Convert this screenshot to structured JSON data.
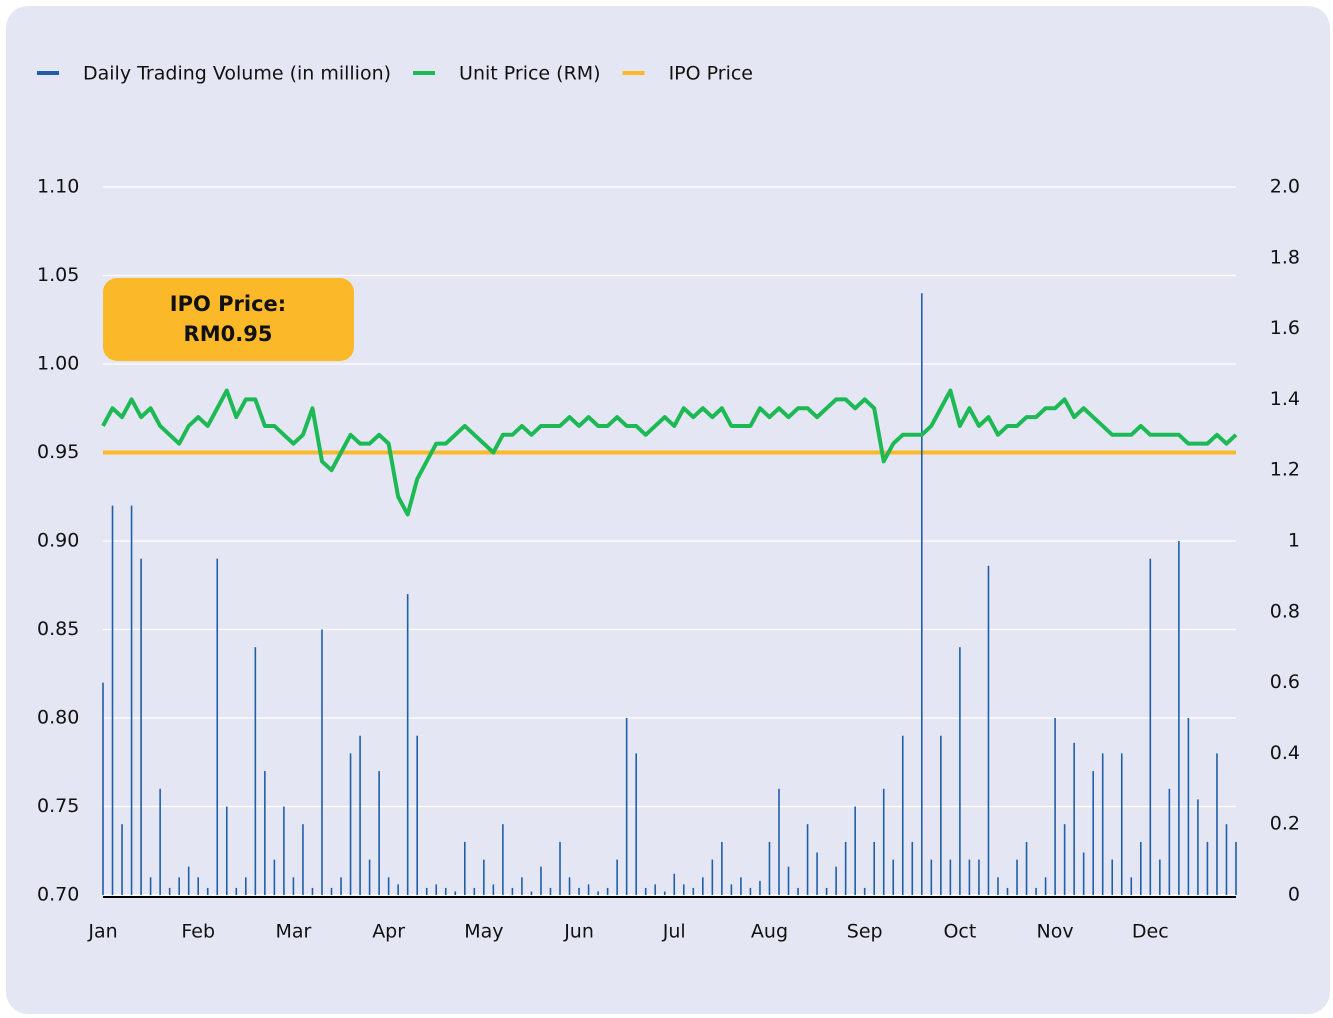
{
  "chart_data": {
    "type": "line",
    "categories": [
      "Jan",
      null,
      null,
      null,
      null,
      null,
      null,
      null,
      null,
      null,
      "Feb",
      null,
      null,
      null,
      null,
      null,
      null,
      null,
      null,
      null,
      "Mar",
      null,
      null,
      null,
      null,
      null,
      null,
      null,
      null,
      null,
      "Apr",
      null,
      null,
      null,
      null,
      null,
      null,
      null,
      null,
      null,
      "May",
      null,
      null,
      null,
      null,
      null,
      null,
      null,
      null,
      null,
      "Jun",
      null,
      null,
      null,
      null,
      null,
      null,
      null,
      null,
      null,
      "Jul",
      null,
      null,
      null,
      null,
      null,
      null,
      null,
      null,
      null,
      "Aug",
      null,
      null,
      null,
      null,
      null,
      null,
      null,
      null,
      null,
      "Sep",
      null,
      null,
      null,
      null,
      null,
      null,
      null,
      null,
      null,
      "Oct",
      null,
      null,
      null,
      null,
      null,
      null,
      null,
      null,
      null,
      "Nov",
      null,
      null,
      null,
      null,
      null,
      null,
      null,
      null,
      null,
      "Dec",
      null,
      null,
      null,
      null,
      null,
      null,
      null,
      null,
      null
    ],
    "series": [
      {
        "name": "Daily Trading Volume (in million)",
        "color": "#1f5fa8",
        "kind": "bar",
        "axis": "y2",
        "values": [
          0.6,
          1.1,
          0.2,
          1.1,
          0.95,
          0.05,
          0.3,
          0.02,
          0.05,
          0.08,
          0.05,
          0.02,
          0.95,
          0.25,
          0.02,
          0.05,
          0.7,
          0.35,
          0.1,
          0.25,
          0.05,
          0.2,
          0.02,
          0.75,
          0.02,
          0.05,
          0.4,
          0.45,
          0.1,
          0.35,
          0.05,
          0.03,
          0.85,
          0.45,
          0.02,
          0.03,
          0.02,
          0.01,
          0.15,
          0.02,
          0.1,
          0.03,
          0.2,
          0.02,
          0.05,
          0.01,
          0.08,
          0.02,
          0.15,
          0.05,
          0.02,
          0.03,
          0.01,
          0.02,
          0.1,
          0.5,
          0.4,
          0.02,
          0.03,
          0.01,
          0.06,
          0.03,
          0.02,
          0.05,
          0.1,
          0.15,
          0.03,
          0.05,
          0.02,
          0.04,
          0.15,
          0.3,
          0.08,
          0.02,
          0.2,
          0.12,
          0.02,
          0.08,
          0.15,
          0.25,
          0.02,
          0.15,
          0.3,
          0.1,
          0.45,
          0.15,
          1.7,
          0.1,
          0.45,
          0.1,
          0.7,
          0.1,
          0.1,
          0.93,
          0.05,
          0.02,
          0.1,
          0.15,
          0.02,
          0.05,
          0.5,
          0.2,
          0.43,
          0.12,
          0.35,
          0.4,
          0.1,
          0.4,
          0.05,
          0.15,
          0.95,
          0.1,
          0.3,
          1.0,
          0.5,
          0.27,
          0.15,
          0.4,
          0.2,
          0.15
        ]
      },
      {
        "name": "Unit Price (RM)",
        "color": "#1db954",
        "kind": "line",
        "values": [
          0.965,
          0.975,
          0.97,
          0.98,
          0.97,
          0.975,
          0.965,
          0.96,
          0.955,
          0.965,
          0.97,
          0.965,
          0.975,
          0.985,
          0.97,
          0.98,
          0.98,
          0.965,
          0.965,
          0.96,
          0.955,
          0.96,
          0.975,
          0.945,
          0.94,
          0.95,
          0.96,
          0.955,
          0.955,
          0.96,
          0.955,
          0.925,
          0.915,
          0.935,
          0.945,
          0.955,
          0.955,
          0.96,
          0.965,
          0.96,
          0.955,
          0.95,
          0.96,
          0.96,
          0.965,
          0.96,
          0.965,
          0.965,
          0.965,
          0.97,
          0.965,
          0.97,
          0.965,
          0.965,
          0.97,
          0.965,
          0.965,
          0.96,
          0.965,
          0.97,
          0.965,
          0.975,
          0.97,
          0.975,
          0.97,
          0.975,
          0.965,
          0.965,
          0.965,
          0.975,
          0.97,
          0.975,
          0.97,
          0.975,
          0.975,
          0.97,
          0.975,
          0.98,
          0.98,
          0.975,
          0.98,
          0.975,
          0.945,
          0.955,
          0.96,
          0.96,
          0.96,
          0.965,
          0.975,
          0.985,
          0.965,
          0.975,
          0.965,
          0.97,
          0.96,
          0.965,
          0.965,
          0.97,
          0.97,
          0.975,
          0.975,
          0.98,
          0.97,
          0.975,
          0.97,
          0.965,
          0.96,
          0.96,
          0.96,
          0.965,
          0.96,
          0.96,
          0.96,
          0.96,
          0.955,
          0.955,
          0.955,
          0.96,
          0.955,
          0.96
        ]
      },
      {
        "name": "IPO Price",
        "color": "#fbb829",
        "kind": "hline",
        "value": 0.95
      }
    ],
    "annotation": {
      "lines": [
        "IPO Price:",
        "RM0.95"
      ]
    },
    "ylim": [
      0.7,
      1.1
    ],
    "yticks": [
      {
        "value": 0.7,
        "label": "0.70"
      },
      {
        "value": 0.75,
        "label": "0.75"
      },
      {
        "value": 0.8,
        "label": "0.80"
      },
      {
        "value": 0.85,
        "label": "0.85"
      },
      {
        "value": 0.9,
        "label": "0.90"
      },
      {
        "value": 0.95,
        "label": "0.95"
      },
      {
        "value": 1.0,
        "label": "1.00"
      },
      {
        "value": 1.05,
        "label": "1.05"
      },
      {
        "value": 1.1,
        "label": "1.10"
      }
    ],
    "y2lim": [
      0,
      2.0
    ],
    "y2ticks": [
      0,
      0.2,
      0.4,
      0.6,
      0.8,
      1,
      1.2,
      1.4,
      1.6,
      1.8,
      {
        "value": 2.0,
        "label": "2.0"
      }
    ],
    "grid": true,
    "legend": "top-left"
  }
}
